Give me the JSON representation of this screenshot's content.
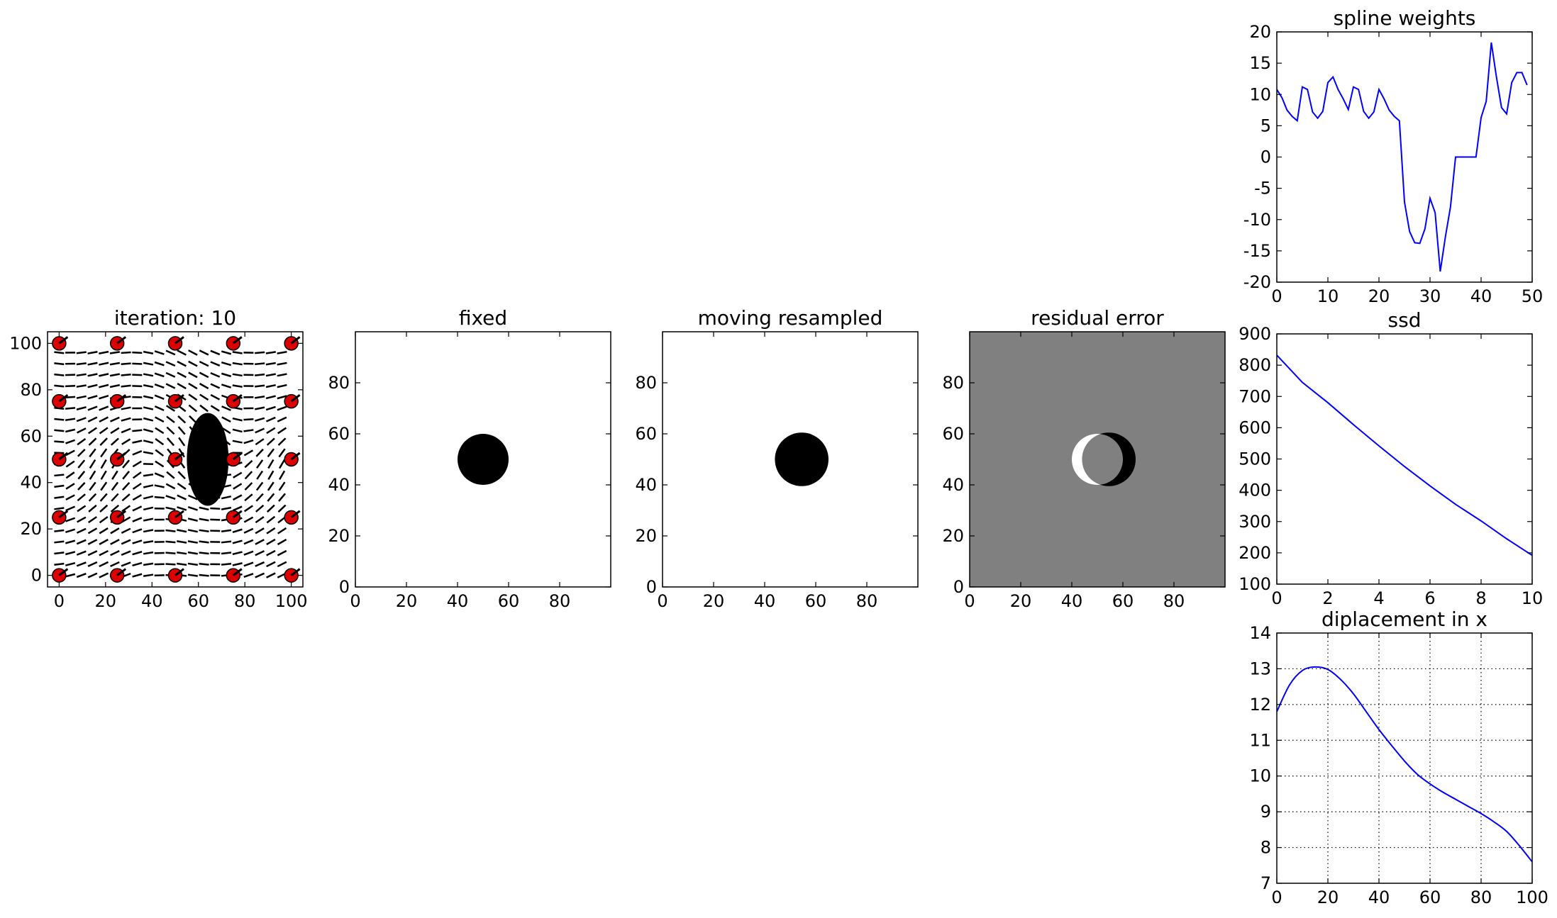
{
  "chart_data": [
    {
      "id": "iteration",
      "type": "scatter",
      "title": "iteration: 10",
      "xlim": [
        -5,
        105
      ],
      "ylim": [
        -5,
        105
      ],
      "xticks": [
        0,
        20,
        40,
        60,
        80,
        100
      ],
      "yticks": [
        0,
        20,
        40,
        60,
        80,
        100
      ],
      "control_points": {
        "x": [
          0,
          25,
          50,
          75,
          100
        ],
        "y": [
          0,
          25,
          50,
          75,
          100
        ],
        "color": "#dd0000"
      },
      "image": {
        "shape": "ellipse",
        "center": [
          64,
          50
        ],
        "radius_x": 9,
        "radius_y": 20,
        "color": "#000000"
      }
    },
    {
      "id": "fixed",
      "type": "heatmap",
      "title": "fixed",
      "xlim": [
        0,
        100
      ],
      "ylim": [
        0,
        100
      ],
      "xticks": [
        0,
        20,
        40,
        60,
        80
      ],
      "yticks": [
        0,
        20,
        40,
        60,
        80
      ],
      "disk": {
        "center": [
          50,
          50
        ],
        "radius": 10
      }
    },
    {
      "id": "moving",
      "type": "heatmap",
      "title": "moving resampled",
      "xlim": [
        0,
        100
      ],
      "ylim": [
        0,
        100
      ],
      "xticks": [
        0,
        20,
        40,
        60,
        80
      ],
      "yticks": [
        0,
        20,
        40,
        60,
        80
      ],
      "disk": {
        "center": [
          54.5,
          50
        ],
        "radius": 10.5
      }
    },
    {
      "id": "residual",
      "type": "heatmap",
      "title": "residual error",
      "xlim": [
        0,
        100
      ],
      "ylim": [
        0,
        100
      ],
      "xticks": [
        0,
        20,
        40,
        60,
        80
      ],
      "yticks": [
        0,
        20,
        40,
        60,
        80
      ],
      "background": "#808080",
      "positive_disk": {
        "center": [
          50,
          50
        ],
        "radius": 10,
        "color": "#ffffff"
      },
      "negative_disk": {
        "center": [
          54.5,
          50
        ],
        "radius": 10.5,
        "color": "#000000"
      }
    },
    {
      "id": "spline",
      "type": "line",
      "title": "spline weights",
      "xlim": [
        0,
        50
      ],
      "ylim": [
        -20,
        20
      ],
      "xticks": [
        0,
        10,
        20,
        30,
        40,
        50
      ],
      "yticks": [
        -20,
        -15,
        -10,
        -5,
        0,
        5,
        10,
        15,
        20
      ],
      "grid": false,
      "color": "#0000ff",
      "x": [
        0,
        1,
        2,
        3,
        4,
        5,
        6,
        7,
        8,
        9,
        10,
        11,
        12,
        13,
        14,
        15,
        16,
        17,
        18,
        19,
        20,
        21,
        22,
        23,
        24,
        25,
        26,
        27,
        28,
        29,
        30,
        31,
        32,
        33,
        34,
        35,
        36,
        37,
        38,
        39,
        40,
        41,
        42,
        43,
        44,
        45,
        46,
        47,
        48,
        49
      ],
      "values": [
        10.8,
        9.5,
        7.5,
        6.5,
        5.8,
        11.2,
        10.8,
        7.2,
        6.2,
        7.3,
        11.9,
        12.8,
        10.8,
        9.3,
        7.6,
        11.2,
        10.8,
        7.3,
        6.2,
        7.2,
        10.8,
        9.3,
        7.5,
        6.5,
        5.8,
        -7.2,
        -11.9,
        -13.7,
        -13.8,
        -11.5,
        -6.6,
        -8.9,
        -18.3,
        -12.8,
        -8.0,
        0,
        0,
        0,
        0,
        0,
        6.3,
        8.9,
        18.3,
        12.8,
        7.9,
        6.9,
        11.9,
        13.5,
        13.5,
        11.5
      ]
    },
    {
      "id": "ssd",
      "type": "line",
      "title": "ssd",
      "xlim": [
        0,
        10
      ],
      "ylim": [
        100,
        900
      ],
      "xticks": [
        0,
        2,
        4,
        6,
        8,
        10
      ],
      "yticks": [
        100,
        200,
        300,
        400,
        500,
        600,
        700,
        800,
        900
      ],
      "grid": false,
      "color": "#0000ff",
      "x": [
        0,
        1,
        2,
        3,
        4,
        5,
        6,
        7,
        8,
        9,
        10
      ],
      "values": [
        832,
        745,
        680,
        610,
        542,
        476,
        414,
        355,
        302,
        245,
        192
      ]
    },
    {
      "id": "displacement",
      "type": "line",
      "title": "diplacement in x",
      "xlim": [
        0,
        100
      ],
      "ylim": [
        7,
        14
      ],
      "xticks": [
        0,
        20,
        40,
        60,
        80,
        100
      ],
      "yticks": [
        7,
        8,
        9,
        10,
        11,
        12,
        13,
        14
      ],
      "grid": true,
      "color": "#0000ff",
      "x": [
        0,
        5,
        10,
        15,
        20,
        25,
        30,
        35,
        40,
        45,
        50,
        55,
        60,
        65,
        70,
        75,
        80,
        85,
        90,
        95,
        100
      ],
      "values": [
        11.8,
        12.55,
        12.95,
        13.05,
        12.98,
        12.7,
        12.3,
        11.8,
        11.3,
        10.85,
        10.42,
        10.05,
        9.78,
        9.55,
        9.35,
        9.15,
        8.95,
        8.72,
        8.45,
        8.05,
        7.6
      ]
    }
  ]
}
